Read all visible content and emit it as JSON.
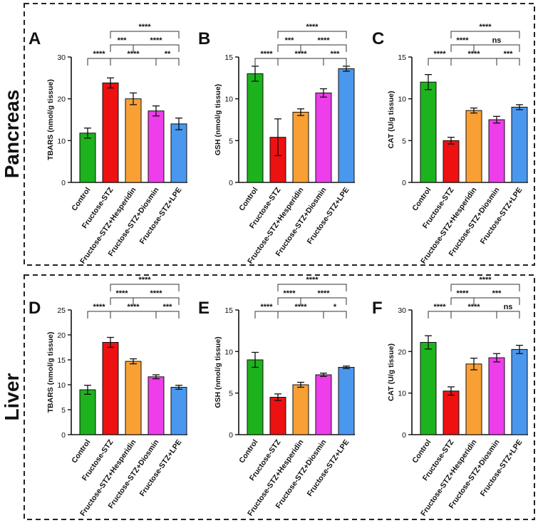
{
  "sections": [
    {
      "label": "Pancreas"
    },
    {
      "label": "Liver"
    }
  ],
  "colors": {
    "Control": "#1db31d",
    "Fructose-STZ": "#ee1111",
    "Fructose-STZ+Hesperidin": "#f9a035",
    "Fructose-STZ+Diosmin": "#ee3dea",
    "Fructose-STZ+LPE": "#4a97ee"
  },
  "chart_data": [
    {
      "panel": "A",
      "section": "Pancreas",
      "type": "bar",
      "categories": [
        "Control",
        "Fructose-STZ",
        "Fructose-STZ+Hesperidin",
        "Fructose-STZ+Diosmin",
        "Fructose-STZ+LPE"
      ],
      "values": [
        11.8,
        23.8,
        20.0,
        17.1,
        14.0
      ],
      "errors": [
        1.2,
        1.2,
        1.4,
        1.2,
        1.4
      ],
      "ylabel": "TBARS (nmol/g tissue)",
      "ylim": [
        0,
        30
      ],
      "yticks": [
        0,
        10,
        20,
        30
      ],
      "annotations": [
        {
          "from": 0,
          "to": 1,
          "label": "****"
        },
        {
          "from": 1,
          "to": 2,
          "label": "***"
        },
        {
          "from": 1,
          "to": 3,
          "label": "****"
        },
        {
          "from": 2,
          "to": 4,
          "label": "****"
        },
        {
          "from": 3,
          "to": 4,
          "label": "**"
        },
        {
          "from": 1,
          "to": 4,
          "label": "****"
        }
      ]
    },
    {
      "panel": "B",
      "section": "Pancreas",
      "type": "bar",
      "categories": [
        "Control",
        "Fructose-STZ",
        "Fructose-STZ+Hesperidin",
        "Fructose-STZ+Diosmin",
        "Fructose-STZ+LPE"
      ],
      "values": [
        13.0,
        5.4,
        8.4,
        10.7,
        13.6
      ],
      "errors": [
        0.9,
        2.2,
        0.4,
        0.5,
        0.3
      ],
      "ylabel": "GSH (nmol/g tissue)",
      "ylim": [
        0,
        15
      ],
      "yticks": [
        0,
        5,
        10,
        15
      ],
      "annotations": [
        {
          "from": 0,
          "to": 1,
          "label": "****"
        },
        {
          "from": 1,
          "to": 2,
          "label": "***"
        },
        {
          "from": 1,
          "to": 3,
          "label": "****"
        },
        {
          "from": 2,
          "to": 4,
          "label": "****"
        },
        {
          "from": 3,
          "to": 4,
          "label": "***"
        },
        {
          "from": 1,
          "to": 4,
          "label": "****"
        }
      ]
    },
    {
      "panel": "C",
      "section": "Pancreas",
      "type": "bar",
      "categories": [
        "Control",
        "Fructose-STZ",
        "Fructose-STZ+Hesperidin",
        "Fructose-STZ+Diosmin",
        "Fructose-STZ+LPE"
      ],
      "values": [
        12.0,
        5.0,
        8.6,
        7.5,
        9.0
      ],
      "errors": [
        0.9,
        0.4,
        0.3,
        0.4,
        0.3
      ],
      "ylabel": "CAT (U/g tissue)",
      "ylim": [
        0,
        15
      ],
      "yticks": [
        0,
        5,
        10,
        15
      ],
      "annotations": [
        {
          "from": 0,
          "to": 1,
          "label": "****"
        },
        {
          "from": 1,
          "to": 2,
          "label": "****"
        },
        {
          "from": 1,
          "to": 3,
          "label": "****"
        },
        {
          "from": 2,
          "to": 4,
          "label": "ns"
        },
        {
          "from": 3,
          "to": 4,
          "label": "***"
        },
        {
          "from": 1,
          "to": 4,
          "label": "****"
        }
      ]
    },
    {
      "panel": "D",
      "section": "Liver",
      "type": "bar",
      "categories": [
        "Control",
        "Fructose-STZ",
        "Fructose-STZ+Hesperidin",
        "Fructose-STZ+Diosmin",
        "Fructose-STZ+LPE"
      ],
      "values": [
        9.0,
        18.5,
        14.7,
        11.6,
        9.5
      ],
      "errors": [
        0.9,
        1.0,
        0.5,
        0.4,
        0.4
      ],
      "ylabel": "TBARS (nmol/g tissue)",
      "ylim": [
        0,
        25
      ],
      "yticks": [
        0,
        5,
        10,
        15,
        20,
        25
      ],
      "annotations": [
        {
          "from": 0,
          "to": 1,
          "label": "****"
        },
        {
          "from": 1,
          "to": 2,
          "label": "****"
        },
        {
          "from": 1,
          "to": 3,
          "label": "****"
        },
        {
          "from": 2,
          "to": 4,
          "label": "****"
        },
        {
          "from": 3,
          "to": 4,
          "label": "***"
        },
        {
          "from": 1,
          "to": 4,
          "label": "****"
        }
      ]
    },
    {
      "panel": "E",
      "section": "Liver",
      "type": "bar",
      "categories": [
        "Control",
        "Fructose-STZ",
        "Fructose-STZ+Hesperidin",
        "Fructose-STZ+Diosmin",
        "Fructose-STZ+LPE"
      ],
      "values": [
        9.0,
        4.5,
        6.0,
        7.2,
        8.1
      ],
      "errors": [
        0.9,
        0.4,
        0.3,
        0.2,
        0.15
      ],
      "ylabel": "GSH (nmol/g tissue)",
      "ylim": [
        0,
        15
      ],
      "yticks": [
        0,
        5,
        10,
        15
      ],
      "annotations": [
        {
          "from": 0,
          "to": 1,
          "label": "****"
        },
        {
          "from": 1,
          "to": 2,
          "label": "****"
        },
        {
          "from": 1,
          "to": 3,
          "label": "****"
        },
        {
          "from": 2,
          "to": 4,
          "label": "****"
        },
        {
          "from": 3,
          "to": 4,
          "label": "*"
        },
        {
          "from": 1,
          "to": 4,
          "label": "****"
        }
      ]
    },
    {
      "panel": "F",
      "section": "Liver",
      "type": "bar",
      "categories": [
        "Control",
        "Fructose-STZ",
        "Fructose-STZ+Hesperidin",
        "Fructose-STZ+Diosmin",
        "Fructose-STZ+LPE"
      ],
      "values": [
        22.2,
        10.5,
        17.0,
        18.5,
        20.5
      ],
      "errors": [
        1.6,
        1.0,
        1.4,
        1.0,
        1.0
      ],
      "ylabel": "CAT (U/g tissue)",
      "ylim": [
        0,
        30
      ],
      "yticks": [
        0,
        10,
        20,
        30
      ],
      "annotations": [
        {
          "from": 0,
          "to": 1,
          "label": "****"
        },
        {
          "from": 1,
          "to": 2,
          "label": "****"
        },
        {
          "from": 1,
          "to": 3,
          "label": "****"
        },
        {
          "from": 2,
          "to": 4,
          "label": "***"
        },
        {
          "from": 3,
          "to": 4,
          "label": "ns"
        },
        {
          "from": 1,
          "to": 4,
          "label": "****"
        }
      ]
    }
  ]
}
